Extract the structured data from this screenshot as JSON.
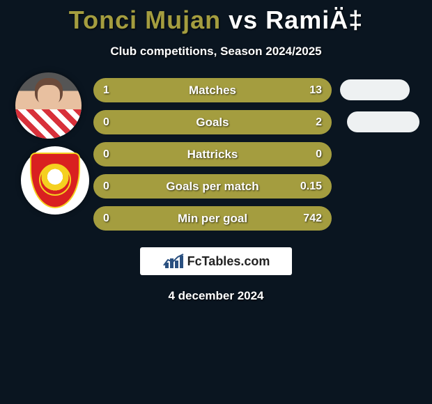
{
  "title": {
    "p1": "Tonci Mujan",
    "vs": "vs",
    "p2": "RamiÄ‡"
  },
  "subtitle": "Club competitions, Season 2024/2025",
  "date": "4 december 2024",
  "logo_text": "FcTables.com",
  "colors": {
    "p1": "#a49d3f",
    "p2": "#ffffff",
    "bg": "#0a1520",
    "text": "#ffffff"
  },
  "stats": [
    {
      "label": "Matches",
      "v1": "1",
      "v2": "13",
      "split": 0.07
    },
    {
      "label": "Goals",
      "v1": "0",
      "v2": "2",
      "split": 0.0
    },
    {
      "label": "Hattricks",
      "v1": "0",
      "v2": "0",
      "split": 1.0
    },
    {
      "label": "Goals per match",
      "v1": "0",
      "v2": "0.15",
      "split": 0.0
    },
    {
      "label": "Min per goal",
      "v1": "0",
      "v2": "742",
      "split": 0.0
    }
  ],
  "bubbles": [
    {
      "stat_index": 0
    },
    {
      "stat_index": 1
    }
  ]
}
